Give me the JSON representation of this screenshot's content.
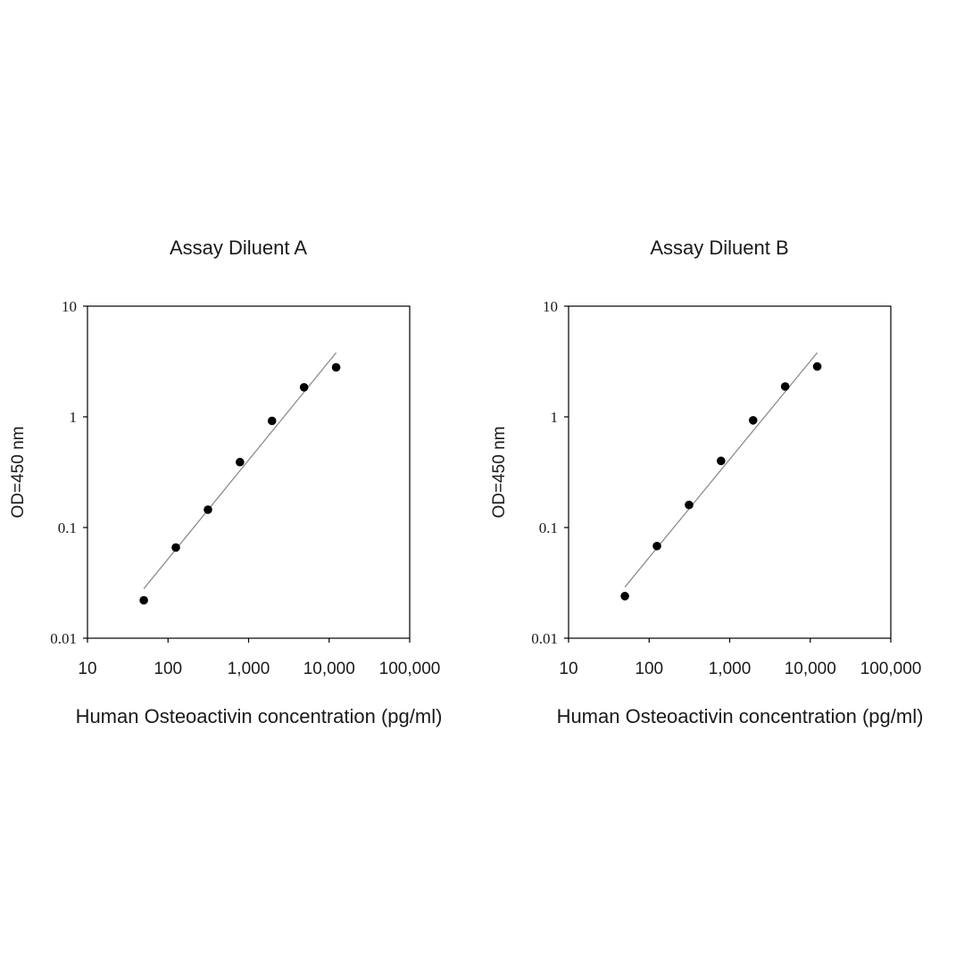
{
  "chart_data": [
    {
      "type": "scatter",
      "title": "Assay Diluent A",
      "xlabel": "Human Osteoactivin concentration (pg/ml)",
      "ylabel": "OD=450 nm",
      "xscale": "log",
      "yscale": "log",
      "xlim": [
        10,
        100000
      ],
      "ylim": [
        0.01,
        10
      ],
      "x_ticks": [
        "10",
        "100",
        "1,000",
        "10,000",
        "100,000"
      ],
      "y_ticks": [
        "0.01",
        "0.1",
        "1",
        "10"
      ],
      "grid": false,
      "legend": "none",
      "series": [
        {
          "x": [
            50,
            125,
            313,
            781,
            1953,
            4883,
            12207
          ],
          "y": [
            0.022,
            0.066,
            0.145,
            0.39,
            0.92,
            1.85,
            2.8
          ]
        }
      ],
      "fit_line": {
        "x": [
          50,
          12207
        ],
        "y": [
          0.028,
          3.8
        ]
      }
    },
    {
      "type": "scatter",
      "title": "Assay Diluent B",
      "xlabel": "Human Osteoactivin concentration (pg/ml)",
      "ylabel": "OD=450 nm",
      "xscale": "log",
      "yscale": "log",
      "xlim": [
        10,
        100000
      ],
      "ylim": [
        0.01,
        10
      ],
      "x_ticks": [
        "10",
        "100",
        "1,000",
        "10,000",
        "100,000"
      ],
      "y_ticks": [
        "0.01",
        "0.1",
        "1",
        "10"
      ],
      "grid": false,
      "legend": "none",
      "series": [
        {
          "x": [
            50,
            125,
            313,
            781,
            1953,
            4883,
            12207
          ],
          "y": [
            0.024,
            0.068,
            0.16,
            0.4,
            0.93,
            1.88,
            2.85
          ]
        }
      ],
      "fit_line": {
        "x": [
          50,
          12207
        ],
        "y": [
          0.029,
          3.8
        ]
      }
    }
  ],
  "colors": {
    "marker": "#000000",
    "fit_line": "#8c8c8c",
    "axes": "#000000",
    "text": "#1a1a1a"
  }
}
